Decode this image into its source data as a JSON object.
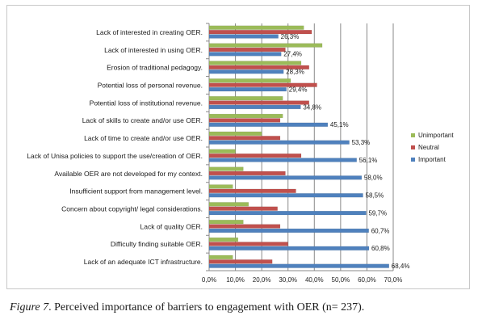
{
  "chart_data": {
    "type": "bar",
    "orientation": "horizontal",
    "categories": [
      "Lack of interested in creating  OER.",
      "Lack of interested in using OER.",
      "Erosion of traditional pedagogy.",
      "Potential loss of personal revenue.",
      "Potential loss of institutional revenue.",
      "Lack of skills to create and/or use OER.",
      "Lack of time to create and/or use OER.",
      "Lack of Unisa policies to support the use/creation of OER.",
      "Available OER are not developed for my context.",
      "Insufficient support from management level.",
      "Concern about copyright/ legal considerations.",
      "Lack of quality OER.",
      "Difficulty finding suitable OER.",
      "Lack of an adequate ICT infrastructure."
    ],
    "series": [
      {
        "name": "Unimportant",
        "color": "#9bbb59",
        "values": [
          36,
          43,
          35,
          31,
          28,
          28,
          20,
          10,
          13,
          9,
          15,
          13,
          11,
          9
        ]
      },
      {
        "name": "Neutral",
        "color": "#c0504d",
        "values": [
          39,
          29,
          38,
          41,
          38,
          27,
          27,
          35,
          29,
          33,
          26,
          27,
          30,
          24
        ]
      },
      {
        "name": "Important",
        "color": "#4f81bd",
        "values": [
          26.3,
          27.4,
          28.3,
          29.4,
          34.8,
          45.1,
          53.3,
          56.1,
          58.0,
          58.5,
          59.7,
          60.7,
          60.8,
          68.4
        ]
      }
    ],
    "data_labels": [
      "26,3%",
      "27,4%",
      "28,3%",
      "29,4%",
      "34,8%",
      "45,1%",
      "53,3%",
      "56,1%",
      "58,0%",
      "58,5%",
      "59,7%",
      "60,7%",
      "60,8%",
      "68,4%"
    ],
    "x_ticks": [
      "0,0%",
      "10,0%",
      "20,0%",
      "30,0%",
      "40,0%",
      "50,0%",
      "60,0%",
      "70,0%"
    ],
    "xlim": [
      0,
      70
    ],
    "grid": true,
    "legend_position": "right"
  },
  "caption": {
    "figure_label": "Figure 7",
    "text": ". Perceived importance of barriers to engagement with OER (n= 237)."
  }
}
